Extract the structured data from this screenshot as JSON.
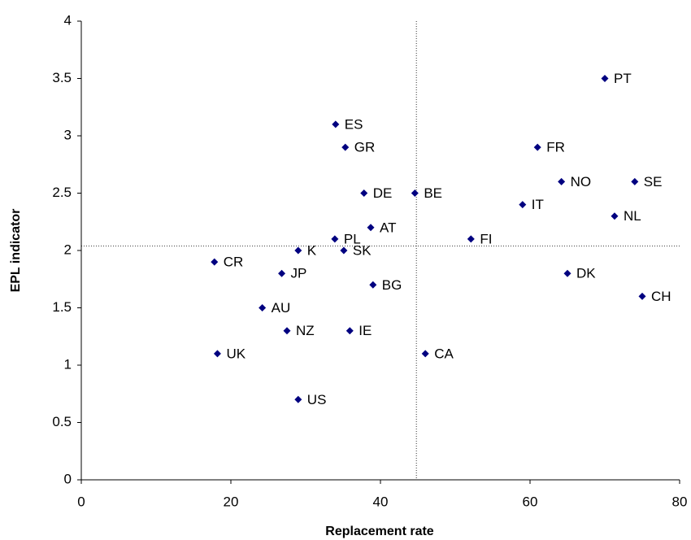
{
  "chart_data": {
    "type": "scatter",
    "x_label": "Replacement rate",
    "y_label": "EPL indicator",
    "x": [
      70,
      34,
      35.3,
      61,
      64.2,
      74,
      37.8,
      44.6,
      59,
      71.3,
      38.7,
      33.9,
      52.1,
      29,
      35.1,
      17.8,
      26.8,
      65,
      39,
      75,
      24.2,
      27.5,
      35.9,
      18.2,
      46,
      29
    ],
    "point_labels": [
      "PT",
      "ES",
      "GR",
      "FR",
      "NO",
      "SE",
      "DE",
      "BE",
      "IT",
      "NL",
      "AT",
      "PL",
      "FI",
      "K",
      "SK",
      "CR",
      "JP",
      "DK",
      "BG",
      "CH",
      "AU",
      "NZ",
      "IE",
      "UK",
      "CA",
      "US"
    ],
    "series": [
      {
        "color": "#000080",
        "values": [
          3.5,
          3.1,
          2.9,
          2.9,
          2.6,
          2.6,
          2.5,
          2.5,
          2.4,
          2.3,
          2.2,
          2.1,
          2.1,
          2.0,
          2.0,
          1.9,
          1.8,
          1.8,
          1.7,
          1.6,
          1.5,
          1.3,
          1.3,
          1.1,
          1.1,
          0.7
        ]
      }
    ],
    "reference_lines": {
      "x": 44.8,
      "y": 2.04
    },
    "xlim": [
      0,
      80
    ],
    "xticks": [
      0,
      20,
      40,
      60,
      80
    ],
    "ylim": [
      0,
      4
    ],
    "yticks": [
      0,
      0.5,
      1,
      1.5,
      2,
      2.5,
      3,
      3.5,
      4
    ],
    "grid": false
  }
}
